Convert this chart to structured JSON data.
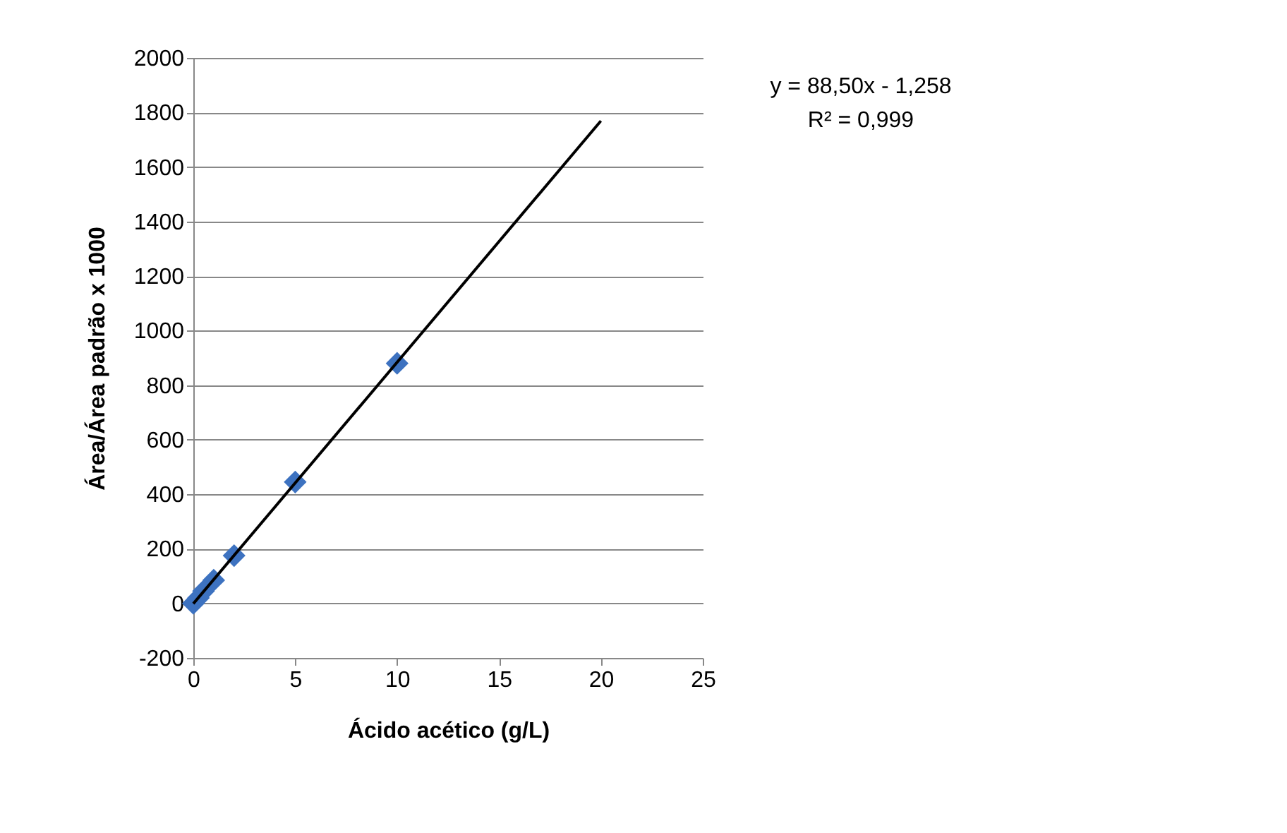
{
  "chart_data": {
    "type": "scatter",
    "xlabel": "Ácido acético (g/L)",
    "ylabel": "Área/Área padrão x 1000",
    "xlim": [
      0,
      25
    ],
    "xticks": [
      0,
      5,
      10,
      15,
      20,
      25
    ],
    "ylim": [
      -200,
      2000
    ],
    "yticks": [
      -200,
      0,
      200,
      400,
      600,
      800,
      1000,
      1200,
      1400,
      1600,
      1800,
      2000
    ],
    "grid": "y",
    "series": [
      {
        "type": "scatter",
        "marker": "diamond",
        "color": "#3d72c0",
        "x": [
          0,
          0.25,
          0.5,
          1,
          2,
          5,
          10
        ],
        "values": [
          0,
          20,
          45,
          85,
          175,
          445,
          880
        ]
      },
      {
        "type": "line",
        "color": "#000000",
        "x": [
          0,
          20
        ],
        "values": [
          -1,
          1769
        ],
        "line_style": "solid"
      }
    ],
    "annotations": [
      "y = 88,50x - 1,258",
      "R² = 0,999"
    ]
  }
}
